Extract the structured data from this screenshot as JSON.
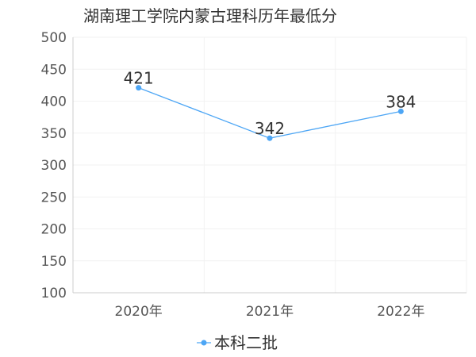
{
  "chart_data": {
    "type": "line",
    "title": "湖南理工学院内蒙古理科历年最低分",
    "xlabel": "",
    "ylabel": "",
    "categories": [
      "2020年",
      "2021年",
      "2022年"
    ],
    "series": [
      {
        "name": "本科二批",
        "values": [
          421,
          342,
          384
        ],
        "data_labels": [
          "421",
          "342",
          "384"
        ],
        "color": "#4da6f5"
      }
    ],
    "ylim": [
      100,
      500
    ],
    "yticks": [
      {
        "value": 100,
        "label": "100"
      },
      {
        "value": 150,
        "label": "150"
      },
      {
        "value": 200,
        "label": "200"
      },
      {
        "value": 250,
        "label": "250"
      },
      {
        "value": 300,
        "label": "300"
      },
      {
        "value": 350,
        "label": "350"
      },
      {
        "value": 400,
        "label": "400"
      },
      {
        "value": 450,
        "label": "450"
      },
      {
        "value": 500,
        "label": "500"
      }
    ],
    "grid": true,
    "legend_position": "bottom-center"
  }
}
